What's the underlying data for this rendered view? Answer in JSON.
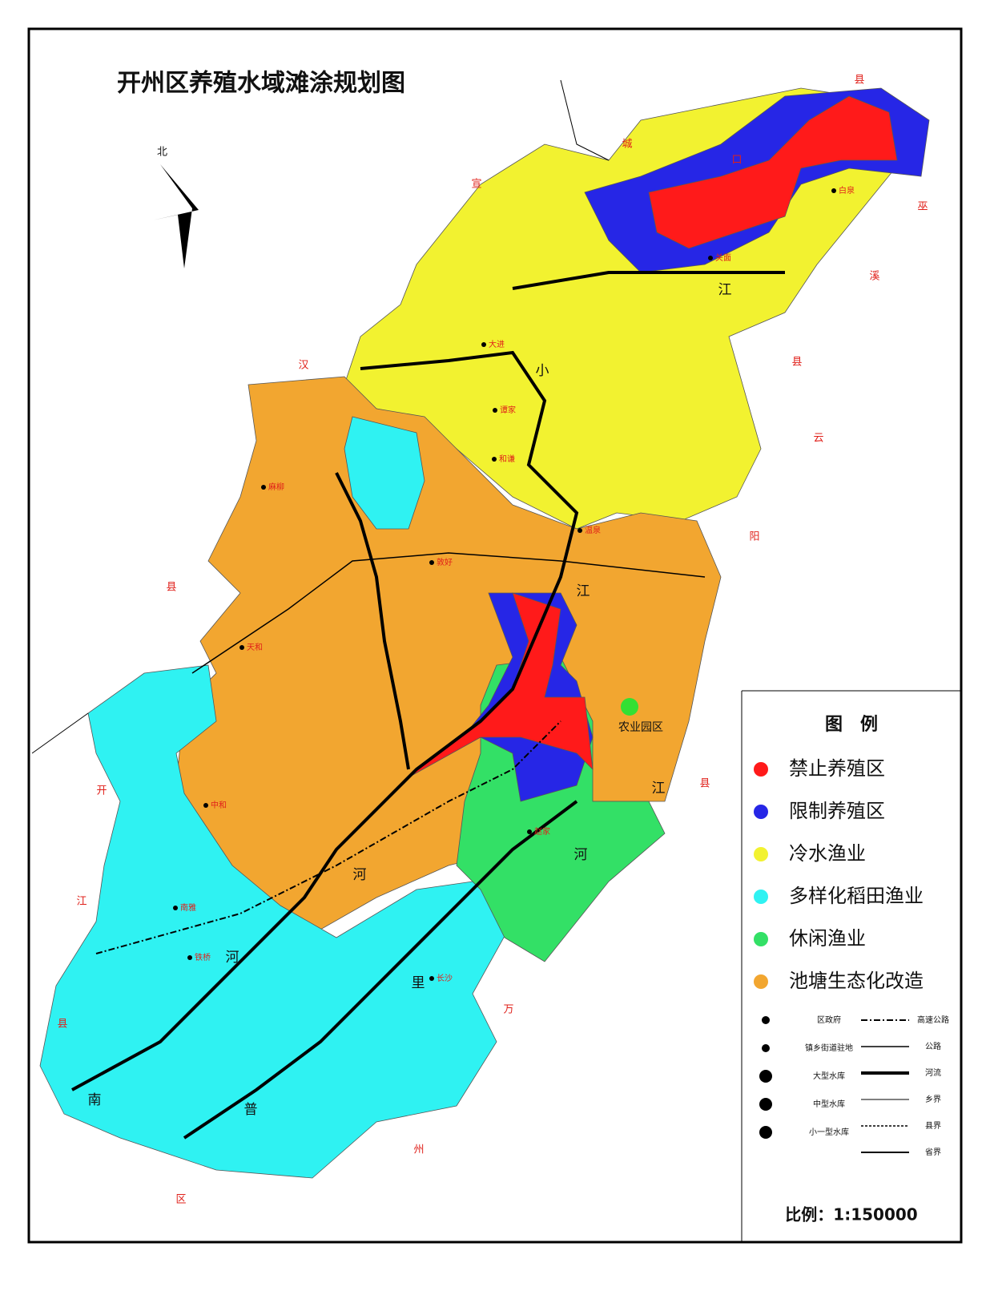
{
  "header": {
    "title": "开州区养殖水域滩涂规划图",
    "north": "北"
  },
  "legend": {
    "title": "图　例",
    "zones": [
      {
        "label": "禁止养殖区",
        "color": "#ff1a1a"
      },
      {
        "label": "限制养殖区",
        "color": "#2626e6"
      },
      {
        "label": "冷水渔业",
        "color": "#f2f230"
      },
      {
        "label": "多样化稻田渔业",
        "color": "#2ff2f2"
      },
      {
        "label": "休闲渔业",
        "color": "#33e066"
      },
      {
        "label": "池塘生态化改造",
        "color": "#f2a630"
      }
    ],
    "symbols": [
      "区政府",
      "镇乡街道驻地",
      "大型水库",
      "中型水库",
      "小一型水库"
    ],
    "lines": [
      "高速公路",
      "公路",
      "河流",
      "乡界",
      "县界",
      "省界"
    ],
    "scale": "比例：1:150000"
  },
  "map": {
    "park": "农业园区",
    "boundary_labels": [
      "城",
      "口",
      "县",
      "巫",
      "溪",
      "县",
      "云",
      "阳",
      "县",
      "万",
      "州",
      "区",
      "县",
      "江",
      "开",
      "县",
      "汉",
      "宣"
    ],
    "river_labels": [
      "江",
      "江",
      "江",
      "河",
      "河",
      "河",
      "里",
      "普",
      "南",
      "小"
    ],
    "place_labels": [
      "大进",
      "谭家",
      "和谦",
      "温泉",
      "白泉",
      "关面",
      "麻柳",
      "敦好",
      "天和",
      "中和",
      "南雅",
      "铁桥",
      "长沙",
      "赵家"
    ]
  }
}
